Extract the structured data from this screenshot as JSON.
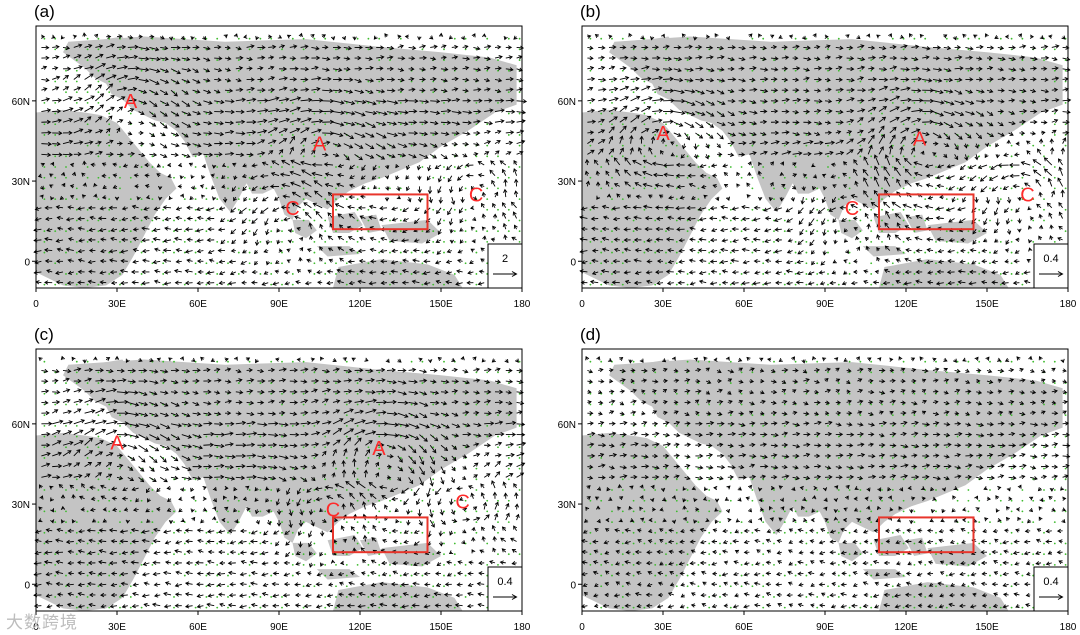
{
  "figure": {
    "x_ticks": [
      "0",
      "30E",
      "60E",
      "90E",
      "120E",
      "150E",
      "180"
    ],
    "y_ticks": [
      "60N",
      "30N",
      "0"
    ],
    "colors": {
      "land": "#c4c4c4",
      "ocean": "#ffffff",
      "vector": "#000000",
      "significance_dot": "#3dbb2d",
      "box": "#e8352b",
      "system_label": "#ff2a2a"
    },
    "panels": [
      {
        "label": "(a)",
        "reference_vector": "2",
        "systems": [
          {
            "type": "A",
            "lon": 35,
            "lat": 60
          },
          {
            "type": "A",
            "lon": 105,
            "lat": 44
          },
          {
            "type": "C",
            "lon": 95,
            "lat": 20
          },
          {
            "type": "C",
            "lon": 163,
            "lat": 25
          }
        ],
        "box": {
          "lon": [
            110,
            145
          ],
          "lat": [
            12,
            25
          ]
        }
      },
      {
        "label": "(b)",
        "reference_vector": "0.4",
        "systems": [
          {
            "type": "A",
            "lon": 30,
            "lat": 48
          },
          {
            "type": "A",
            "lon": 125,
            "lat": 46
          },
          {
            "type": "C",
            "lon": 100,
            "lat": 20
          },
          {
            "type": "C",
            "lon": 165,
            "lat": 25
          }
        ],
        "box": {
          "lon": [
            110,
            145
          ],
          "lat": [
            12,
            25
          ]
        }
      },
      {
        "label": "(c)",
        "reference_vector": "0.4",
        "systems": [
          {
            "type": "A",
            "lon": 30,
            "lat": 53
          },
          {
            "type": "A",
            "lon": 127,
            "lat": 51
          },
          {
            "type": "C",
            "lon": 110,
            "lat": 28
          },
          {
            "type": "C",
            "lon": 158,
            "lat": 31
          }
        ],
        "box": {
          "lon": [
            110,
            145
          ],
          "lat": [
            12,
            25
          ]
        }
      },
      {
        "label": "(d)",
        "reference_vector": "0.4",
        "systems": [],
        "box": {
          "lon": [
            110,
            145
          ],
          "lat": [
            12,
            25
          ]
        }
      }
    ]
  },
  "watermark": "大数跨境"
}
